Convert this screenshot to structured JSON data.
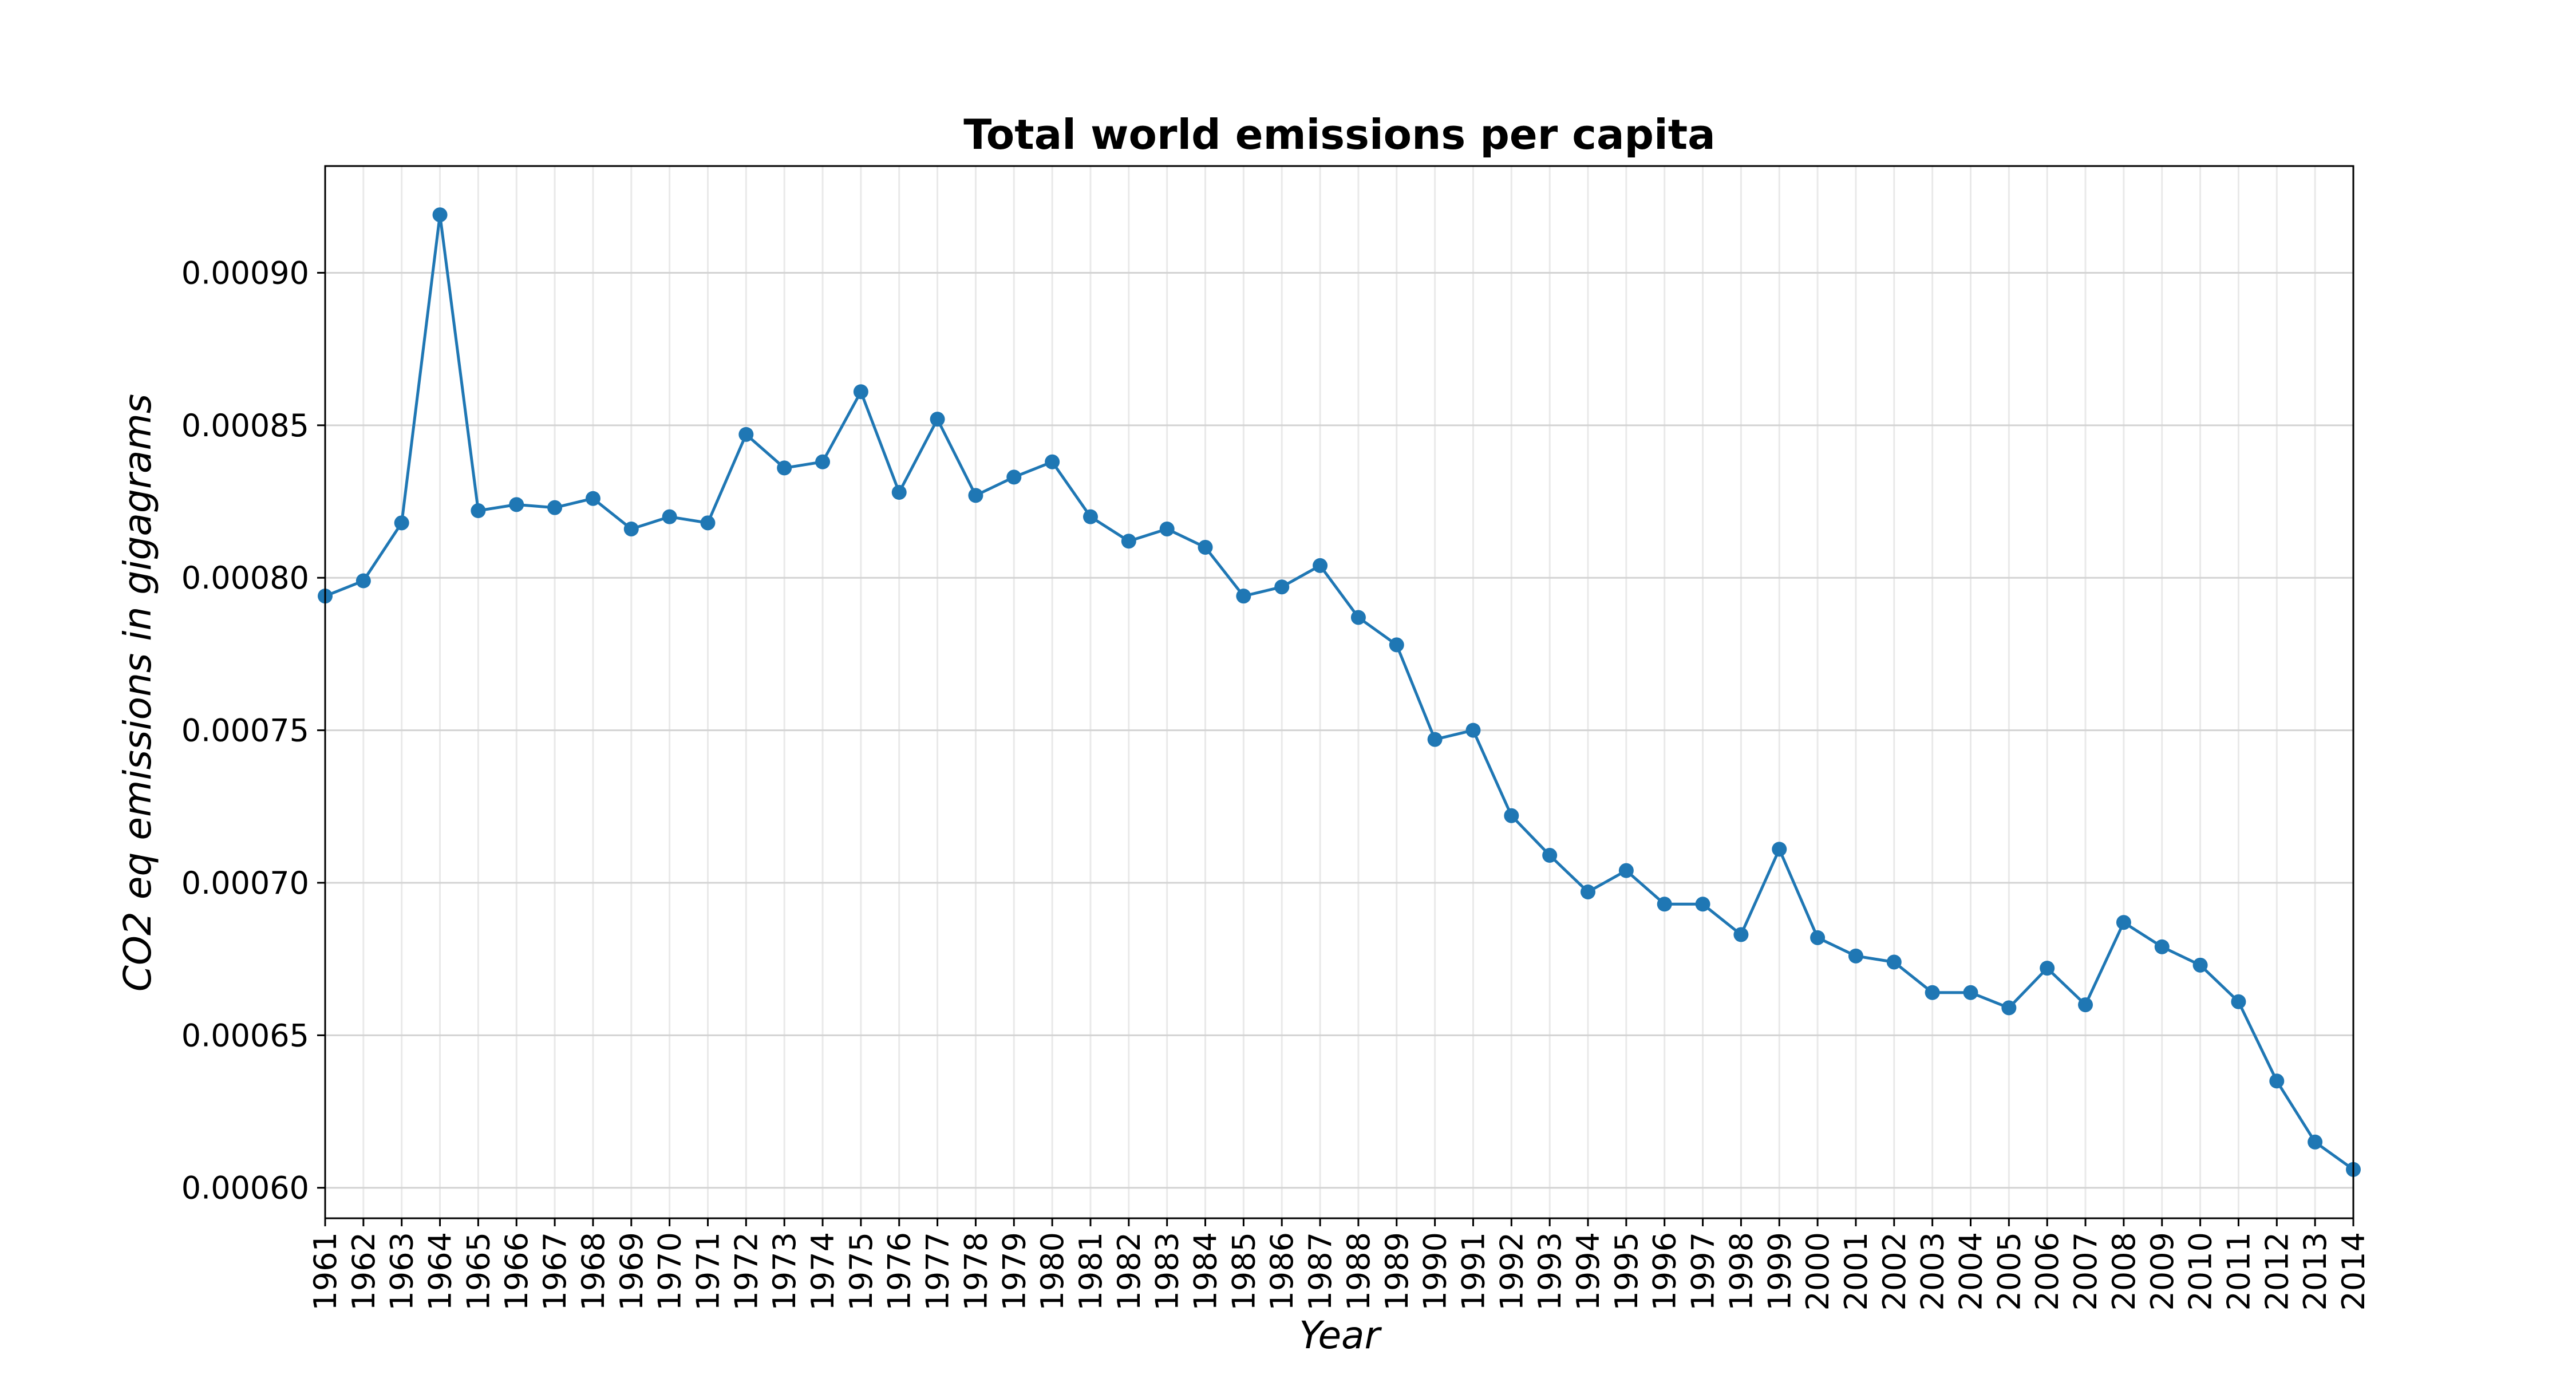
{
  "chart_data": {
    "type": "line",
    "title": "Total world emissions per capita",
    "xlabel": "Year",
    "ylabel": "CO2 eq emissions in gigagrams",
    "x": [
      "1961",
      "1962",
      "1963",
      "1964",
      "1965",
      "1966",
      "1967",
      "1968",
      "1969",
      "1970",
      "1971",
      "1972",
      "1973",
      "1974",
      "1975",
      "1976",
      "1977",
      "1978",
      "1979",
      "1980",
      "1981",
      "1982",
      "1983",
      "1984",
      "1985",
      "1986",
      "1987",
      "1988",
      "1989",
      "1990",
      "1991",
      "1992",
      "1993",
      "1994",
      "1995",
      "1996",
      "1997",
      "1998",
      "1999",
      "2000",
      "2001",
      "2002",
      "2003",
      "2004",
      "2005",
      "2006",
      "2007",
      "2008",
      "2009",
      "2010",
      "2011",
      "2012",
      "2013",
      "2014"
    ],
    "series": [
      {
        "color": "#1f77b4",
        "marker": "circle",
        "values": [
          0.000794,
          0.000799,
          0.000818,
          0.000919,
          0.000822,
          0.000824,
          0.000823,
          0.000826,
          0.000816,
          0.00082,
          0.000818,
          0.000847,
          0.000836,
          0.000838,
          0.000861,
          0.000828,
          0.000852,
          0.000827,
          0.000833,
          0.000838,
          0.00082,
          0.000812,
          0.000816,
          0.00081,
          0.000794,
          0.000797,
          0.000804,
          0.000787,
          0.000778,
          0.000747,
          0.00075,
          0.000722,
          0.000709,
          0.000697,
          0.000704,
          0.000693,
          0.000693,
          0.000683,
          0.000711,
          0.000682,
          0.000676,
          0.000674,
          0.000664,
          0.000664,
          0.000659,
          0.000672,
          0.00066,
          0.000687,
          0.000679,
          0.000673,
          0.000661,
          0.000635,
          0.000615,
          0.000606
        ]
      }
    ],
    "ylim": [
      0.00059,
      0.000935
    ],
    "yticks": [
      0.0006,
      0.00065,
      0.0007,
      0.00075,
      0.0008,
      0.00085,
      0.0009
    ],
    "ytick_labels": [
      "0.00060",
      "0.00065",
      "0.00070",
      "0.00075",
      "0.00080",
      "0.00085",
      "0.00090"
    ],
    "grid": true,
    "legend": "none"
  }
}
